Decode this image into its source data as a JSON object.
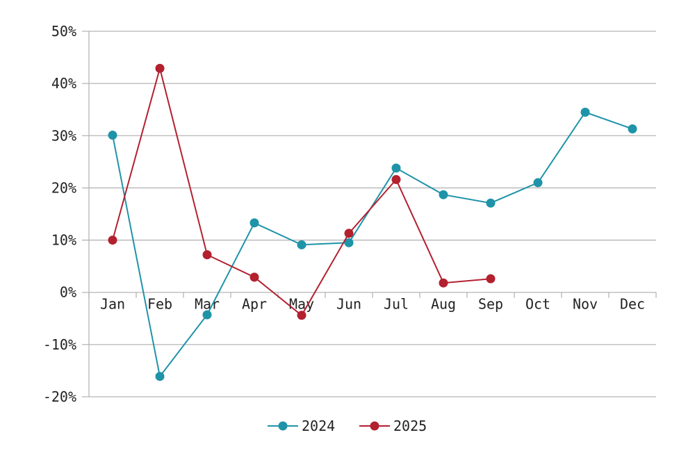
{
  "chart_data": {
    "type": "line",
    "categories": [
      "Jan",
      "Feb",
      "Mar",
      "Apr",
      "May",
      "Jun",
      "Jul",
      "Aug",
      "Sep",
      "Oct",
      "Nov",
      "Dec"
    ],
    "series": [
      {
        "name": "2024",
        "color": "#1f93a8",
        "values": [
          30.1,
          -16.1,
          -4.3,
          13.3,
          9.1,
          9.5,
          23.8,
          18.7,
          17.1,
          21.0,
          34.5,
          31.3
        ]
      },
      {
        "name": "2025",
        "color": "#b3202e",
        "values": [
          10.0,
          42.9,
          7.2,
          2.9,
          -4.4,
          11.3,
          21.6,
          1.8,
          2.6,
          null,
          null,
          null
        ]
      }
    ],
    "y_ticks": [
      50,
      40,
      30,
      20,
      10,
      0,
      -10,
      -20
    ],
    "y_tick_labels": [
      "50%",
      "40%",
      "30%",
      "20%",
      "10%",
      "0%",
      "-10%",
      "-20%"
    ],
    "ylim": [
      -20,
      50
    ],
    "grid": true,
    "legend": "bottom"
  }
}
